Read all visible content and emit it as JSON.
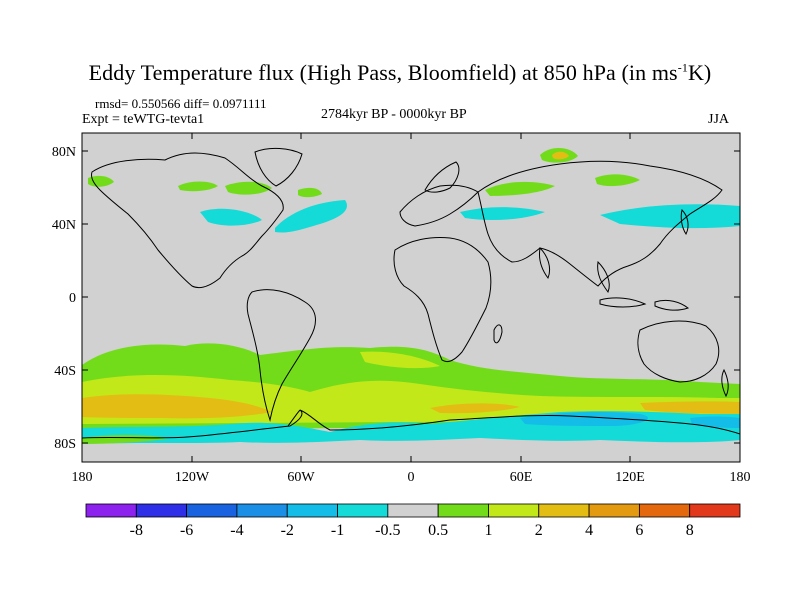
{
  "header": {
    "title_pre": "Eddy Temperature flux (High Pass, Bloomfield) at 850 hPa (in ms",
    "title_sup": "-1",
    "title_post": "K)",
    "stats": "rmsd= 0.550566 diff= 0.0971111",
    "experiment": "Expt = teWTG-tevta1",
    "period": "2784kyr BP - 0000kyr BP",
    "season": "JJA"
  },
  "axes": {
    "lat_labels": [
      "80N",
      "40N",
      "0",
      "40S",
      "80S"
    ],
    "lon_labels": [
      "180",
      "120W",
      "60W",
      "0",
      "60E",
      "120E",
      "180"
    ]
  },
  "colorbar": {
    "labels": [
      "-8",
      "-6",
      "-4",
      "-2",
      "-1",
      "-0.5",
      "0.5",
      "1",
      "2",
      "4",
      "6",
      "8"
    ],
    "colors": [
      "#8d22ee",
      "#2f2fe8",
      "#1a63e0",
      "#1b8fe6",
      "#13bde8",
      "#14dbd7",
      "#d1d1d1",
      "#73dc1a",
      "#c3e81a",
      "#e3bd14",
      "#e49a10",
      "#e4680e",
      "#e2381c"
    ]
  },
  "colors": {
    "background": "#d1d1d1",
    "coast": "#000000"
  }
}
